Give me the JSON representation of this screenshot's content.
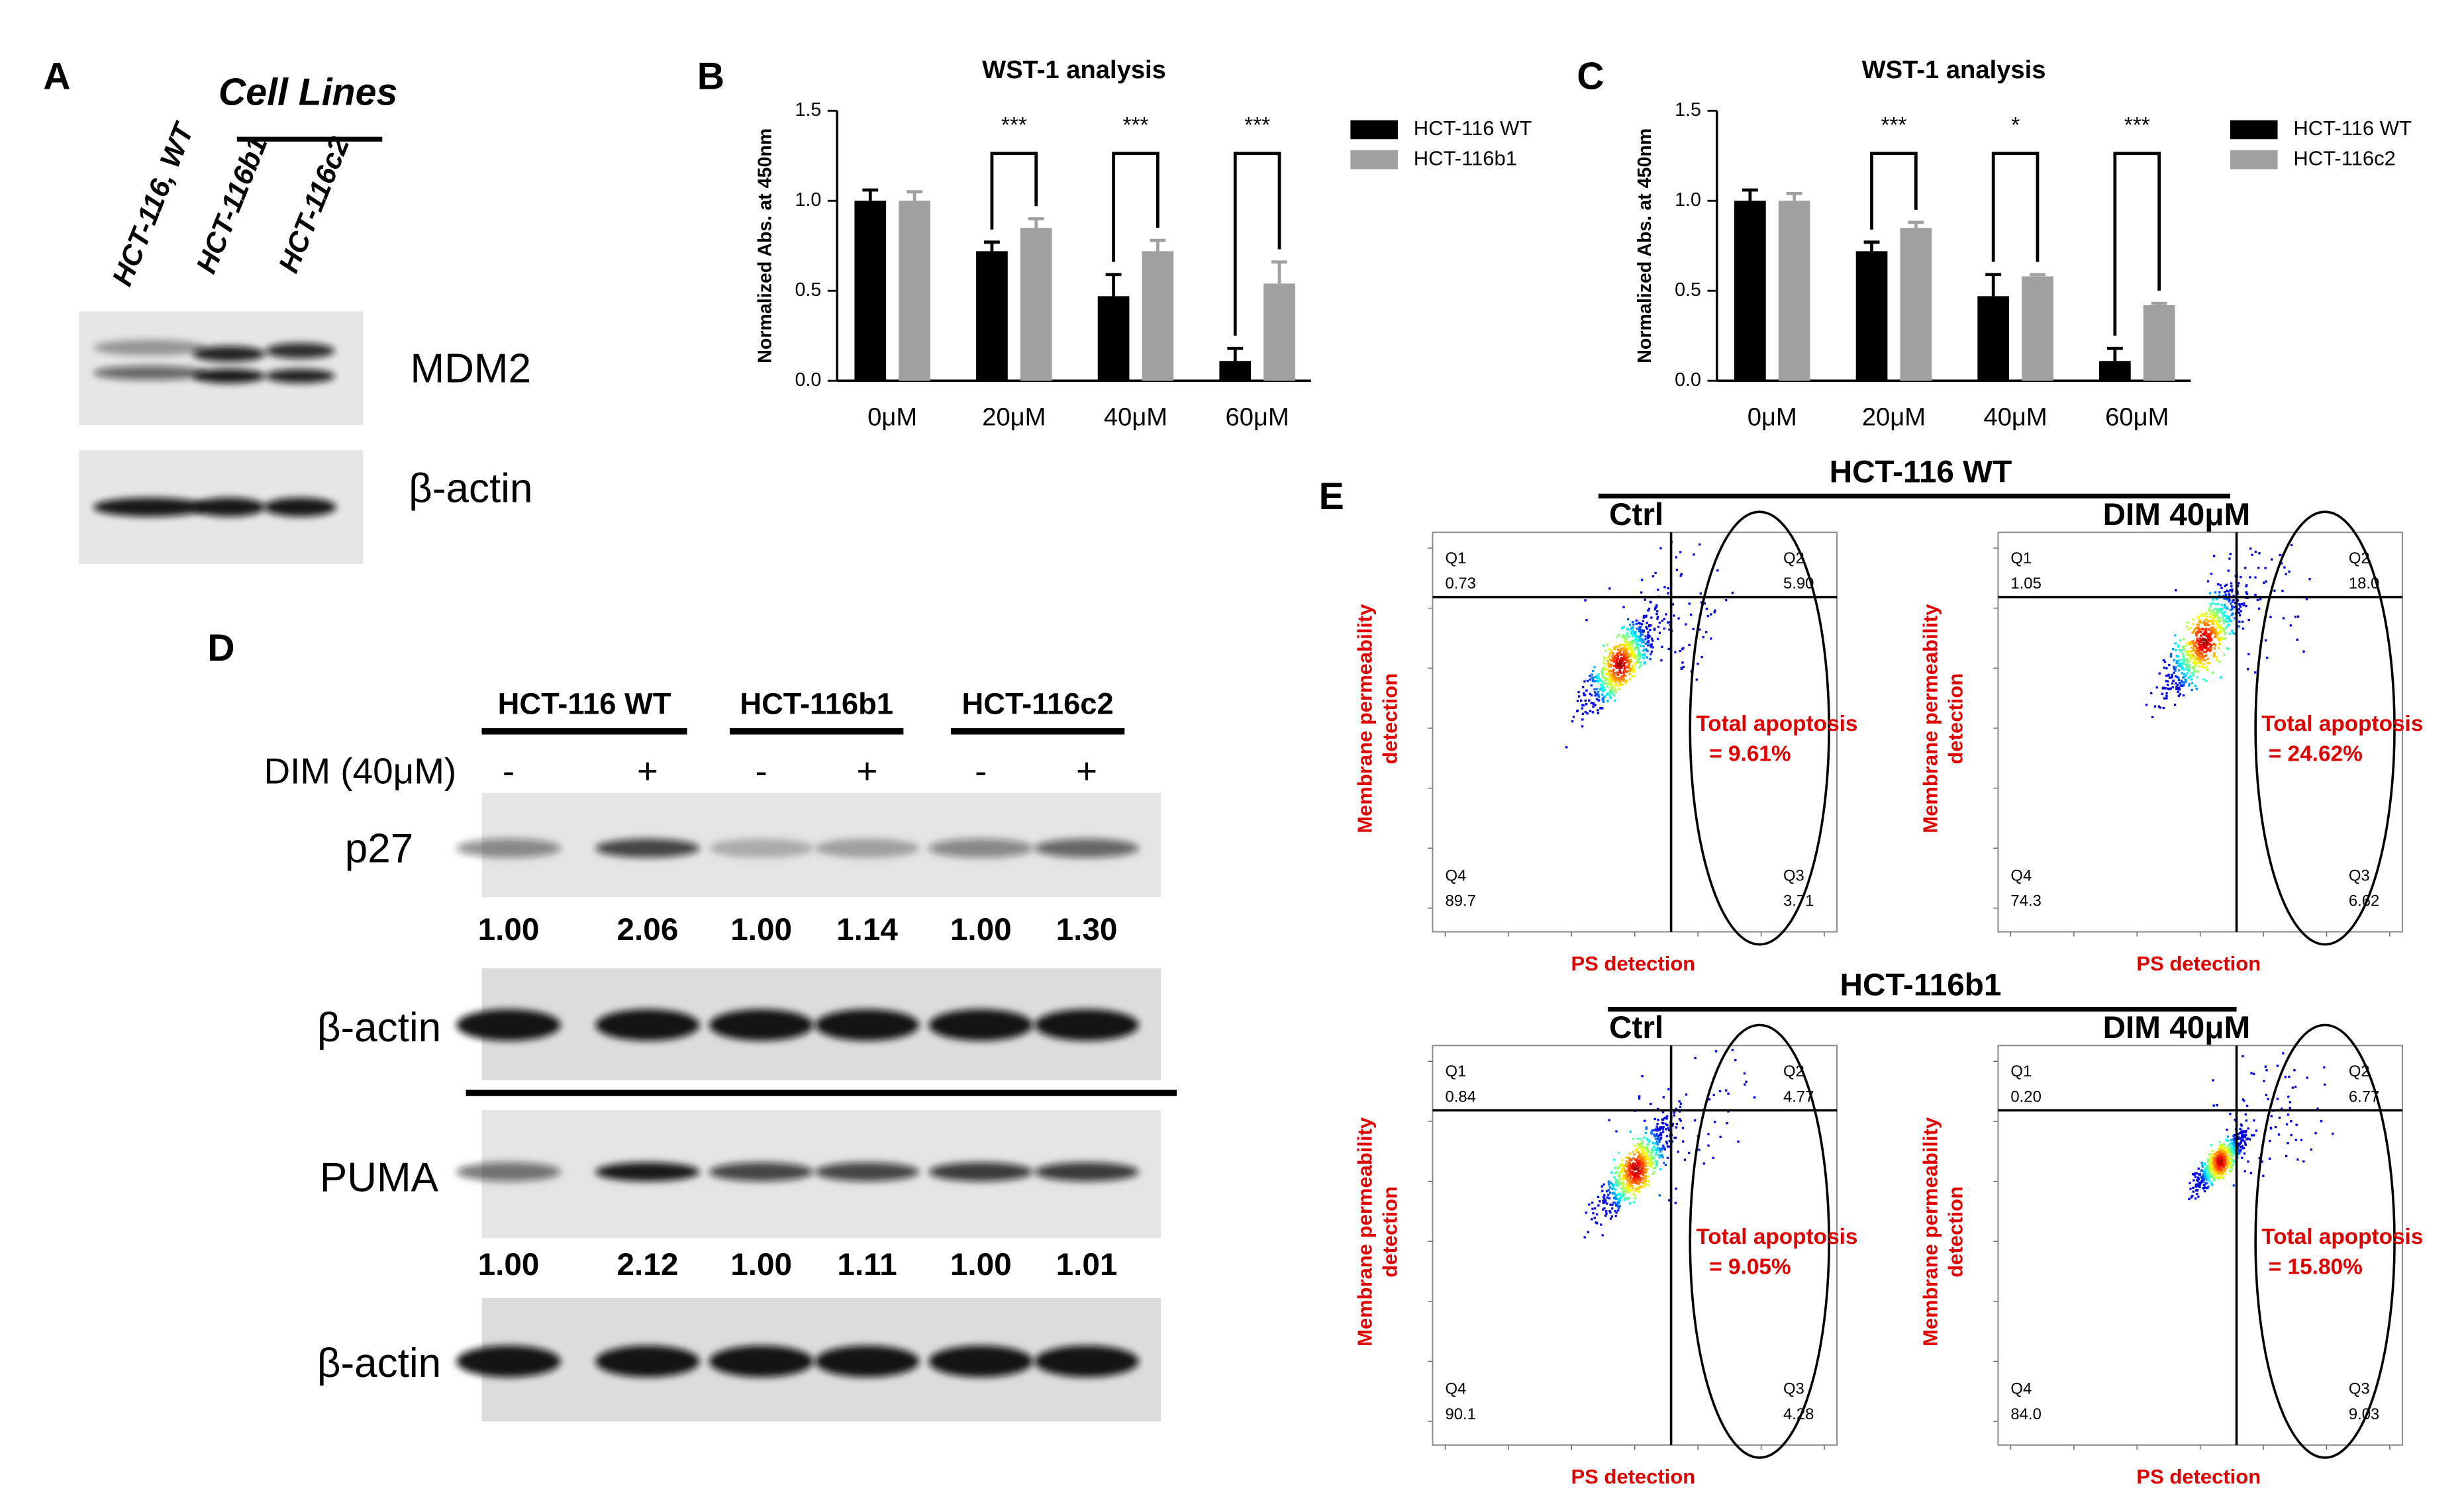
{
  "panel_a": {
    "label": "A",
    "title": "Cell Lines",
    "lanes": [
      "HCT-116, WT",
      "HCT-116b1",
      "HCT-116c2"
    ],
    "blots": [
      "MDM2",
      "β-actin"
    ]
  },
  "chart_data": [
    {
      "type": "bar",
      "panel": "B",
      "title": "WST-1 analysis",
      "y_label": "Normalized Abs. at 450nm",
      "categories": [
        "0μM",
        "20μM",
        "40μM",
        "60μM"
      ],
      "series": [
        {
          "name": "HCT-116 WT",
          "color": "#000000",
          "values": [
            1.0,
            0.72,
            0.47,
            0.11
          ],
          "errors": [
            0.06,
            0.05,
            0.12,
            0.07
          ]
        },
        {
          "name": "HCT-116b1",
          "color": "#a0a0a0",
          "values": [
            1.0,
            0.85,
            0.72,
            0.54
          ],
          "errors": [
            0.05,
            0.05,
            0.06,
            0.12
          ]
        }
      ],
      "significance": [
        null,
        "***",
        "***",
        "***"
      ],
      "ylim": [
        0,
        1.5
      ],
      "yticks": [
        {
          "value": 0,
          "label": "0.0"
        },
        {
          "value": 0.5,
          "label": "0.5"
        },
        {
          "value": 1,
          "label": "1.0"
        },
        {
          "value": 1.5,
          "label": "1.5"
        }
      ]
    },
    {
      "type": "bar",
      "panel": "C",
      "title": "WST-1 analysis",
      "y_label": "Normalized Abs. at 450nm",
      "categories": [
        "0μM",
        "20μM",
        "40μM",
        "60μM"
      ],
      "series": [
        {
          "name": "HCT-116 WT",
          "color": "#000000",
          "values": [
            1.0,
            0.72,
            0.47,
            0.11
          ],
          "errors": [
            0.06,
            0.05,
            0.12,
            0.07
          ]
        },
        {
          "name": "HCT-116c2",
          "color": "#a0a0a0",
          "values": [
            1.0,
            0.85,
            0.58,
            0.42
          ],
          "errors": [
            0.04,
            0.03,
            0.01,
            0.01
          ]
        }
      ],
      "significance": [
        null,
        "***",
        "*",
        "***"
      ],
      "ylim": [
        0,
        1.5
      ],
      "yticks": [
        {
          "value": 0,
          "label": "0.0"
        },
        {
          "value": 0.5,
          "label": "0.5"
        },
        {
          "value": 1,
          "label": "1.0"
        },
        {
          "value": 1.5,
          "label": "1.5"
        }
      ]
    }
  ],
  "panel_d": {
    "label": "D",
    "groups": [
      "HCT-116 WT",
      "HCT-116b1",
      "HCT-116c2"
    ],
    "treatment": "DIM (40μM)",
    "signs": [
      "-",
      "+",
      "-",
      "+",
      "-",
      "+"
    ],
    "blots": [
      {
        "name": "p27",
        "quant": [
          "1.00",
          "2.06",
          "1.00",
          "1.14",
          "1.00",
          "1.30"
        ]
      },
      {
        "name": "β-actin"
      },
      {
        "name": "PUMA",
        "quant": [
          "1.00",
          "2.12",
          "1.00",
          "1.11",
          "1.00",
          "1.01"
        ]
      },
      {
        "name": "β-actin"
      }
    ]
  },
  "panel_e": {
    "label": "E",
    "y_label": [
      "Membrane permeability",
      "detection"
    ],
    "x_label": "PS detection",
    "total_label": "Total apoptosis",
    "quadrants": [
      "Q1",
      "Q2",
      "Q3",
      "Q4"
    ],
    "rows": [
      {
        "title": "HCT-116 WT",
        "plots": [
          {
            "condition": "Ctrl",
            "q1": "0.73",
            "q2": "5.90",
            "q3": "3.71",
            "q4": "89.7",
            "total": "= 9.61%"
          },
          {
            "condition": "DIM 40μM",
            "q1": "1.05",
            "q2": "18.0",
            "q3": "6.62",
            "q4": "74.3",
            "total": "= 24.62%"
          }
        ]
      },
      {
        "title": "HCT-116b1",
        "plots": [
          {
            "condition": "Ctrl",
            "q1": "0.84",
            "q2": "4.77",
            "q3": "4.28",
            "q4": "90.1",
            "total": "= 9.05%"
          },
          {
            "condition": "DIM 40μM",
            "q1": "0.20",
            "q2": "6.77",
            "q3": "9.03",
            "q4": "84.0",
            "total": "= 15.80%"
          }
        ]
      }
    ]
  }
}
